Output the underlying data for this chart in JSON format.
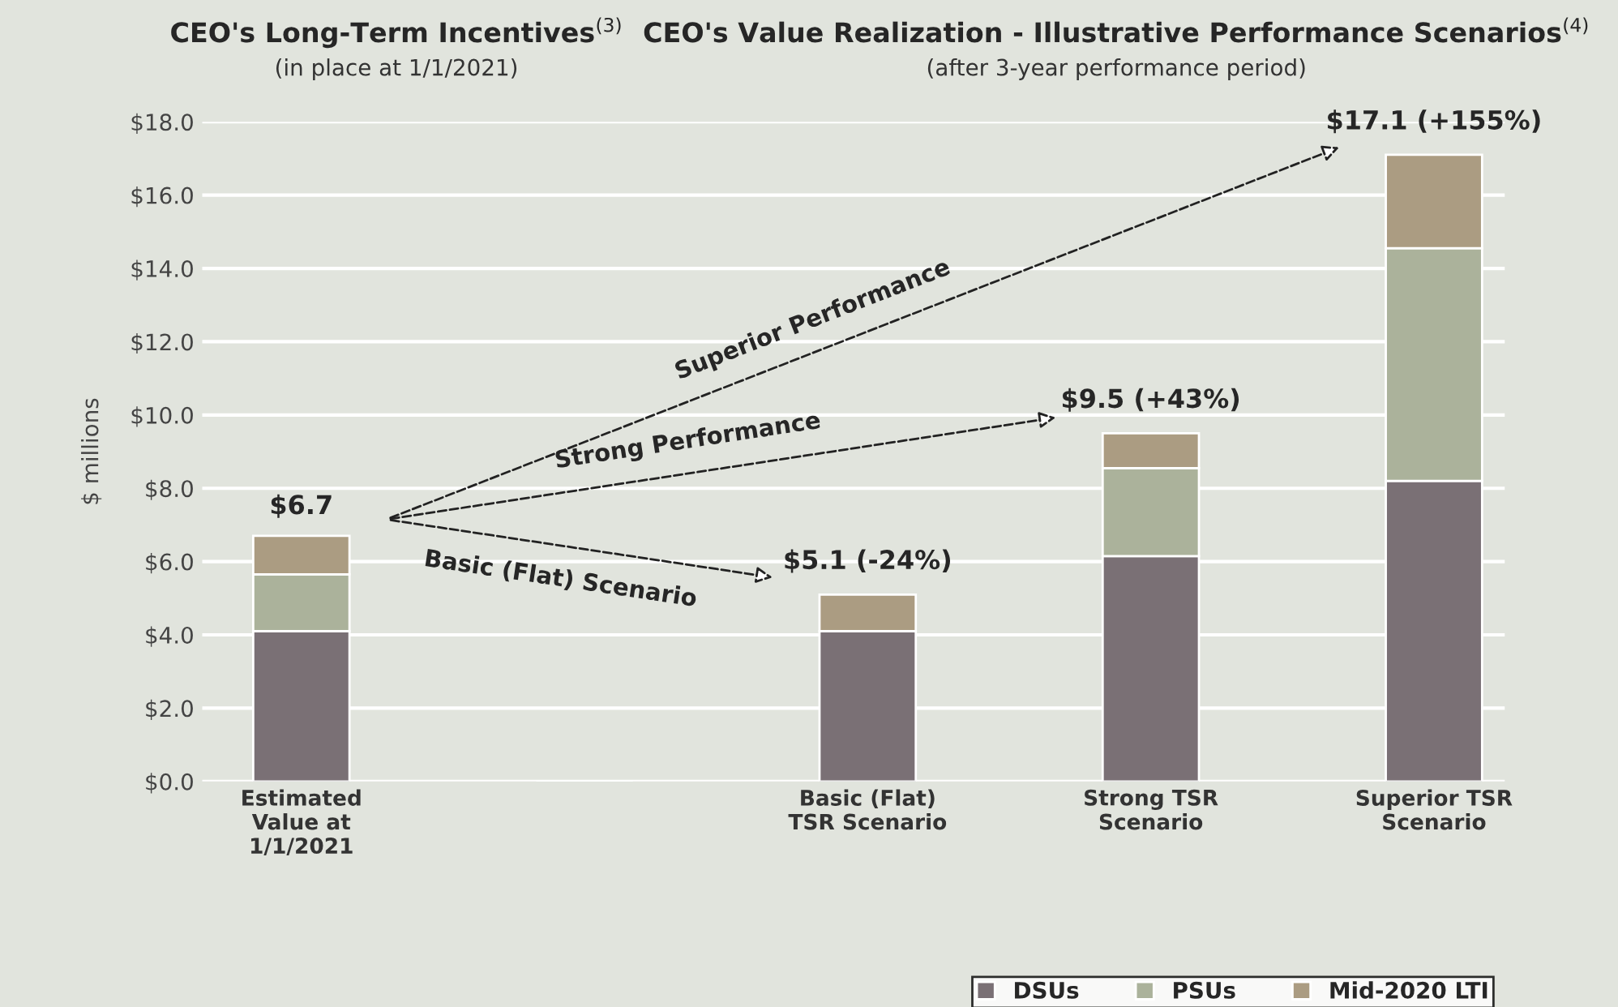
{
  "chart_data": {
    "type": "bar",
    "stacked": true,
    "title": "CEO's Long-Term Incentives$^{(3)}$",
    "subtitle": "(in place at 1/1/2021)",
    "ylabel": "$ millions",
    "categories": [
      "Estimated\nValue at\n1/1/2021",
      null,
      "Basic (Flat)\nTSR Scenario",
      "Strong TSR\nScenario",
      "Superior TSR\nScenario"
    ],
    "series": [
      {
        "name": "DSUs",
        "color": "#7a7075",
        "values": [
          4.1,
          null,
          4.1,
          6.15,
          8.2
        ]
      },
      {
        "name": "PSUs",
        "color": "#abb29b",
        "values": [
          1.55,
          null,
          0,
          2.4,
          6.35
        ]
      },
      {
        "name": "Mid-2020 LTI",
        "color": "#ab9c82",
        "values": [
          1.05,
          null,
          1.0,
          0.95,
          2.55
        ]
      }
    ],
    "totals": [
      "$6.7",
      null,
      "$5.1 (-24%)",
      "$9.5 (+43%)",
      "$17.1 (+155%)"
    ],
    "annotations": [
      "CEO's Value Realization - Illustrative Performance Scenarios$^{(4)}$",
      "(after 3-year performance period)",
      "Basic (Flat) Scenario",
      "Strong Performance",
      "Superior Performance"
    ],
    "ylim": [
      0,
      18
    ],
    "yticks": [
      {
        "value": 0,
        "label": "$0.0"
      },
      {
        "value": 2,
        "label": "$2.0"
      },
      {
        "value": 4,
        "label": "$4.0"
      },
      {
        "value": 6,
        "label": "$6.0"
      },
      {
        "value": 8,
        "label": "$8.0"
      },
      {
        "value": 10,
        "label": "$10.0"
      },
      {
        "value": 12,
        "label": "$12.0"
      },
      {
        "value": 14,
        "label": "$14.0"
      },
      {
        "value": 16,
        "label": "$16.0"
      },
      {
        "value": 18,
        "label": "$18.0"
      }
    ],
    "grid": "y",
    "legend": "bottom"
  }
}
